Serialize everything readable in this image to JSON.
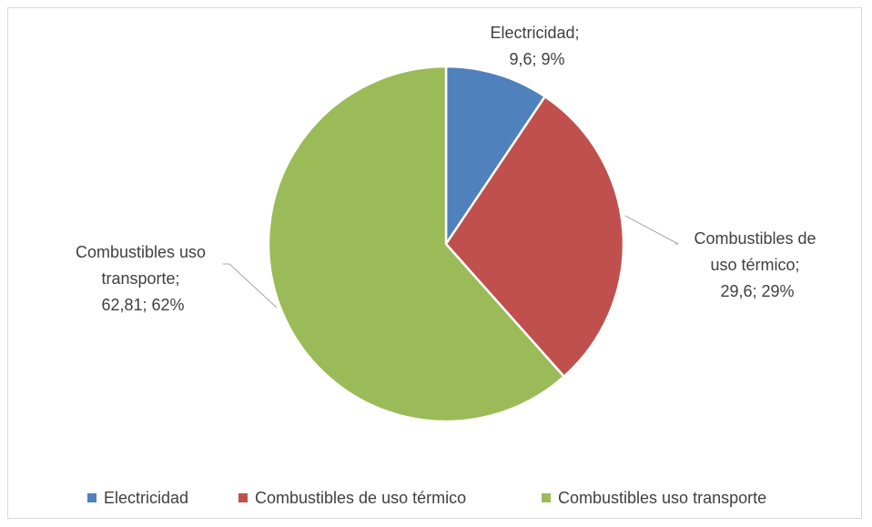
{
  "chart_data": {
    "type": "pie",
    "title": "",
    "slices": [
      {
        "name": "Electricidad",
        "value": 9.6,
        "percent": 9,
        "color": "#4f81bd"
      },
      {
        "name": "Combustibles de uso térmico",
        "value": 29.6,
        "percent": 29,
        "color": "#c0504d"
      },
      {
        "name": "Combustibles uso transporte",
        "value": 62.81,
        "percent": 62,
        "color": "#9bbb59"
      }
    ],
    "data_labels": [
      [
        "Electricidad;",
        "9,6; 9%"
      ],
      [
        "Combustibles de",
        "uso térmico;",
        "29,6; 29%"
      ],
      [
        "Combustibles uso",
        "transporte;",
        "62,81; 62%"
      ]
    ],
    "legend": {
      "position": "bottom",
      "items": [
        "Electricidad",
        "Combustibles de uso térmico",
        "Combustibles uso transporte"
      ]
    }
  }
}
